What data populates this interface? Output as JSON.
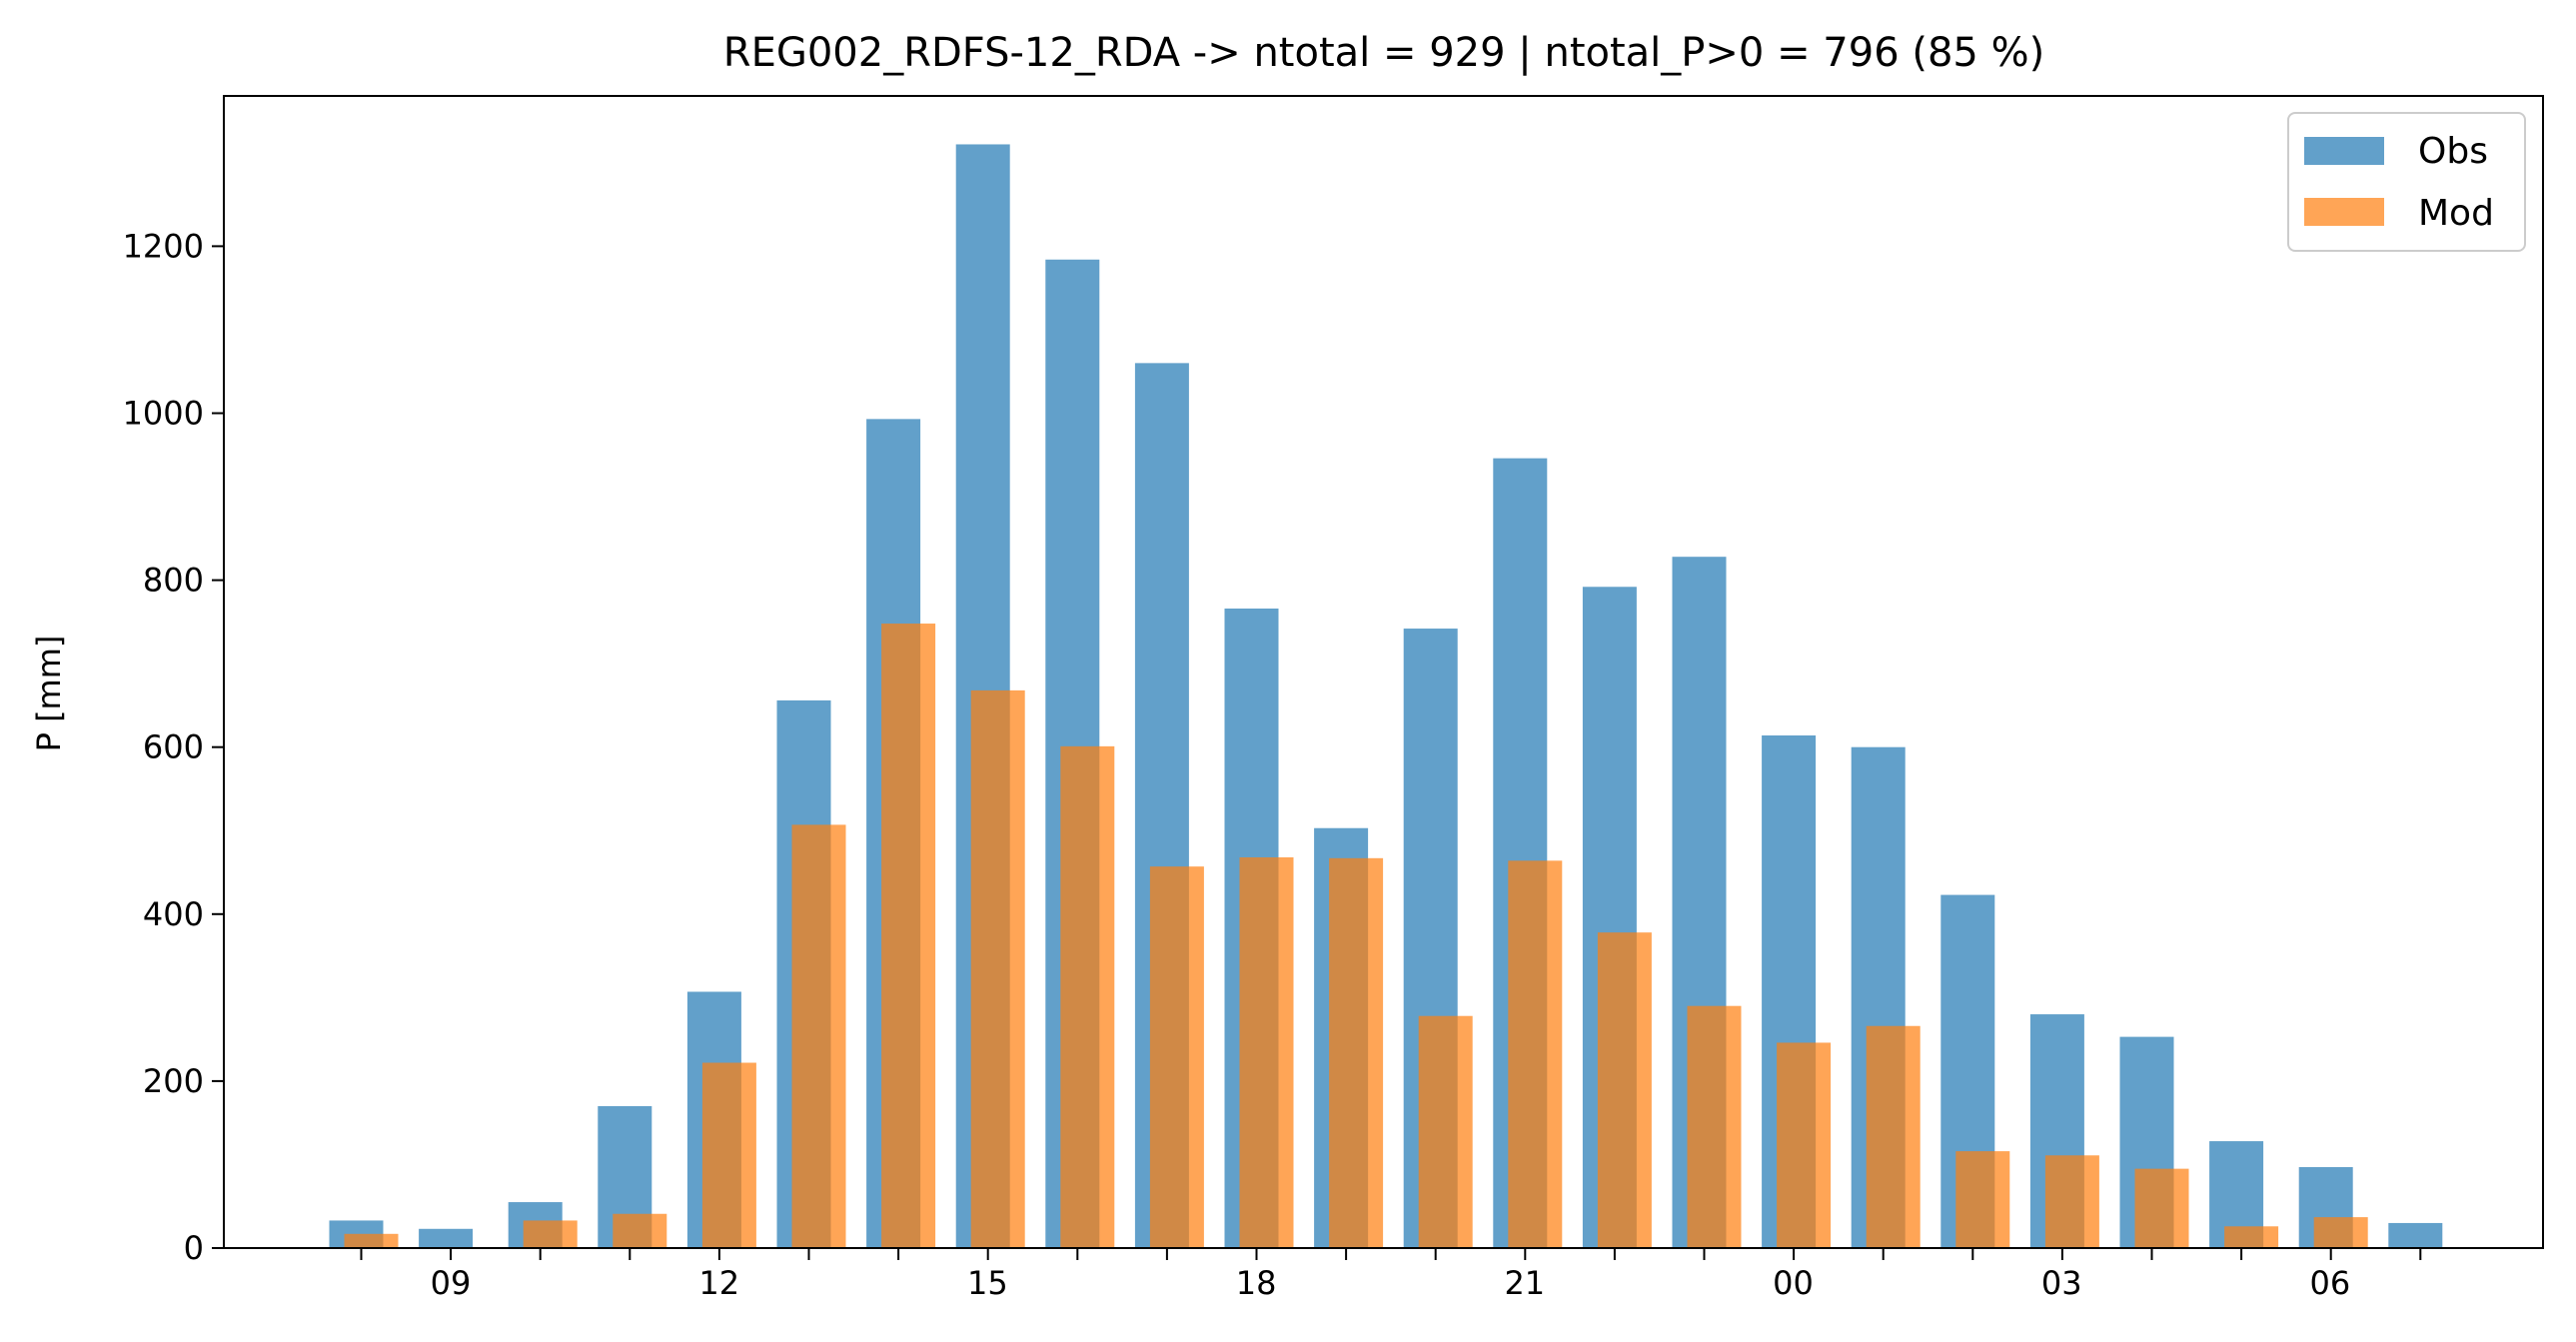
{
  "chart_data": {
    "type": "bar",
    "title": "REG002_RDFS-12_RDA -> ntotal = 929 | ntotal_P>0 = 796 (85 %)",
    "xlabel": "",
    "ylabel": "P [mm]",
    "ylim": [
      0,
      1380
    ],
    "yticks": [
      0,
      200,
      400,
      600,
      800,
      1000,
      1200
    ],
    "xtick_labels": [
      "09",
      "12",
      "15",
      "18",
      "21",
      "00",
      "03",
      "06"
    ],
    "grid": false,
    "legend_position": "top-right",
    "categories": [
      "08",
      "09",
      "10",
      "11",
      "12",
      "13",
      "14",
      "15",
      "16",
      "17",
      "18",
      "19",
      "20",
      "21",
      "22",
      "23",
      "00",
      "01",
      "02",
      "03",
      "04",
      "05",
      "06",
      "07"
    ],
    "series": [
      {
        "name": "Obs",
        "color": "#1f77b4",
        "values": [
          33,
          23,
          55,
          170,
          307,
          656,
          993,
          1322,
          1184,
          1060,
          766,
          503,
          742,
          946,
          792,
          828,
          614,
          600,
          423,
          280,
          253,
          128,
          97,
          30
        ]
      },
      {
        "name": "Mod",
        "color": "#ff7f0e",
        "values": [
          17,
          0,
          33,
          41,
          222,
          507,
          748,
          668,
          601,
          457,
          468,
          467,
          278,
          464,
          378,
          290,
          246,
          266,
          116,
          111,
          95,
          26,
          37,
          0
        ]
      }
    ]
  }
}
